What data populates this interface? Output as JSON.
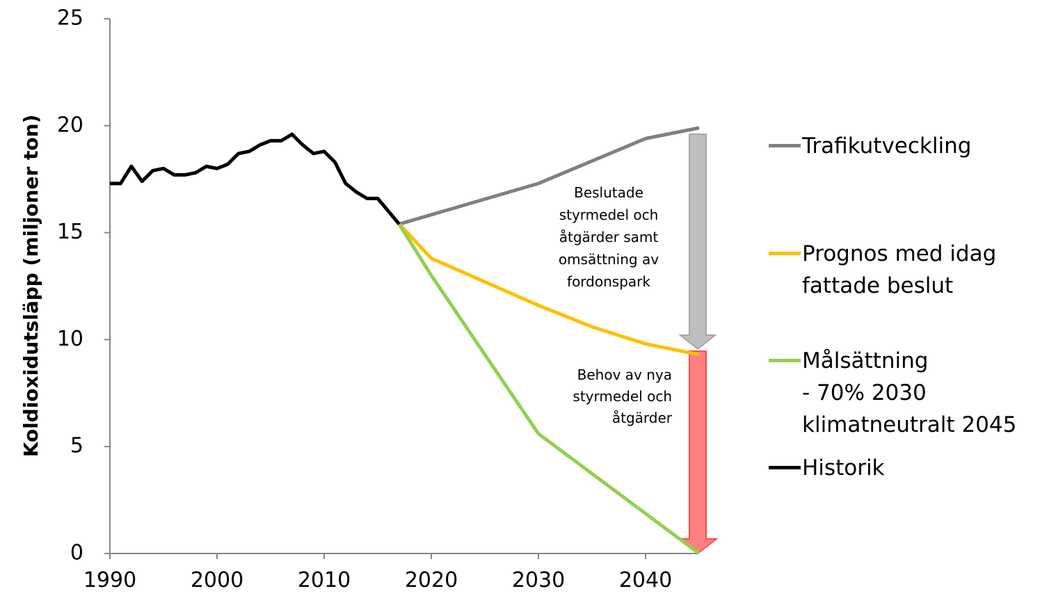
{
  "chart_data": {
    "type": "line",
    "ylabel": "Koldioxidutsläpp (miljoner ton)",
    "xlim": [
      1990,
      2045
    ],
    "ylim": [
      0,
      25
    ],
    "xticks": [
      1990,
      2000,
      2010,
      2020,
      2030,
      2040
    ],
    "yticks": [
      0,
      5,
      10,
      15,
      20,
      25
    ],
    "series": [
      {
        "name": "Trafikutveckling",
        "color": "#808080",
        "x": [
          2017,
          2030,
          2040,
          2045
        ],
        "values": [
          15.4,
          17.3,
          19.4,
          19.9
        ]
      },
      {
        "name": "Prognos med idag\nfattade beslut",
        "color": "#ffc000",
        "x": [
          2017,
          2020,
          2030,
          2035,
          2040,
          2045
        ],
        "values": [
          15.4,
          13.8,
          11.6,
          10.6,
          9.8,
          9.3
        ]
      },
      {
        "name": "Målsättning\n- 70% 2030\nklimatneutralt 2045",
        "color": "#92d050",
        "x": [
          2017,
          2020,
          2030,
          2045
        ],
        "values": [
          15.4,
          13.0,
          5.6,
          0
        ]
      },
      {
        "name": "Historik",
        "color": "#000000",
        "x": [
          1990,
          1991,
          1992,
          1993,
          1994,
          1995,
          1996,
          1997,
          1998,
          1999,
          2000,
          2001,
          2002,
          2003,
          2004,
          2005,
          2006,
          2007,
          2008,
          2009,
          2010,
          2011,
          2012,
          2013,
          2014,
          2015,
          2016,
          2017
        ],
        "values": [
          17.3,
          17.3,
          18.1,
          17.4,
          17.9,
          18.0,
          17.7,
          17.7,
          17.8,
          18.1,
          18.0,
          18.2,
          18.7,
          18.8,
          19.1,
          19.3,
          19.3,
          19.6,
          19.1,
          18.7,
          18.8,
          18.3,
          17.3,
          16.9,
          16.6,
          16.6,
          16.0,
          15.4
        ]
      }
    ],
    "annotations": [
      "Beslutade\nstyrmedel och\nåtgärder samt\nomsättning av\nfordonspark",
      "Behov av nya\nstyrmedel och\nåtgärder"
    ]
  }
}
